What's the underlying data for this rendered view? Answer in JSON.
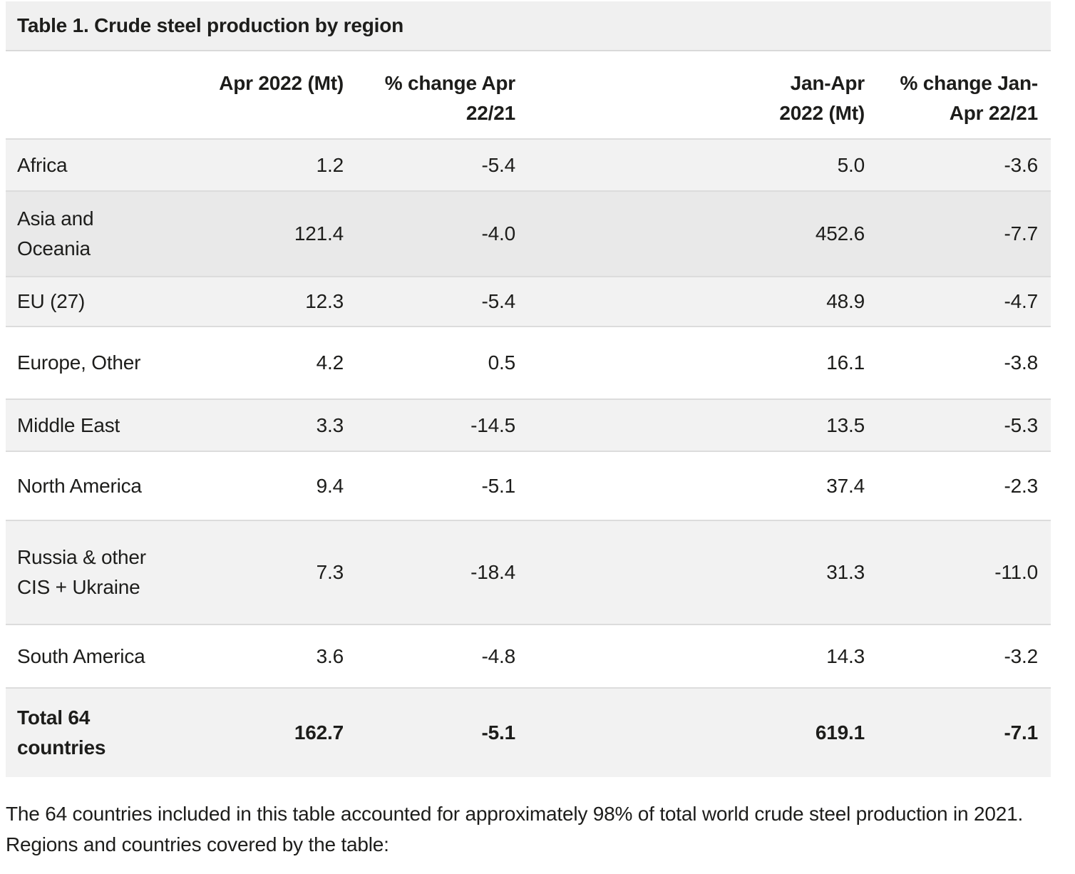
{
  "title": "Table 1. Crude steel production by region",
  "table": {
    "column_headers": {
      "region": "",
      "apr_2022": "Apr 2022 (Mt)",
      "chg_apr": "% change Apr\n22/21",
      "jan_apr_2022": "Jan-Apr\n2022 (Mt)",
      "chg_jan_apr": "% change Jan-\nApr 22/21"
    },
    "rows": [
      {
        "region": "Africa",
        "apr_2022": "1.2",
        "chg_apr": "-5.4",
        "jan_apr_2022": "5.0",
        "chg_jan_apr": "-3.6"
      },
      {
        "region": "Asia and\nOceania",
        "apr_2022": "121.4",
        "chg_apr": "-4.0",
        "jan_apr_2022": "452.6",
        "chg_jan_apr": "-7.7",
        "state": "hovered"
      },
      {
        "region": "EU (27)",
        "apr_2022": "12.3",
        "chg_apr": "-5.4",
        "jan_apr_2022": "48.9",
        "chg_jan_apr": "-4.7"
      },
      {
        "region": "Europe, Other",
        "apr_2022": "4.2",
        "chg_apr": "0.5",
        "jan_apr_2022": "16.1",
        "chg_jan_apr": "-3.8"
      },
      {
        "region": "Middle East",
        "apr_2022": "3.3",
        "chg_apr": "-14.5",
        "jan_apr_2022": "13.5",
        "chg_jan_apr": "-5.3"
      },
      {
        "region": "North America",
        "apr_2022": "9.4",
        "chg_apr": "-5.1",
        "jan_apr_2022": "37.4",
        "chg_jan_apr": "-2.3"
      },
      {
        "region": "Russia & other\nCIS + Ukraine",
        "apr_2022": "7.3",
        "chg_apr": "-18.4",
        "jan_apr_2022": "31.3",
        "chg_jan_apr": "-11.0"
      },
      {
        "region": "South America",
        "apr_2022": "3.6",
        "chg_apr": "-4.8",
        "jan_apr_2022": "14.3",
        "chg_jan_apr": "-3.2"
      },
      {
        "region": "Total 64\ncountries",
        "apr_2022": "162.7",
        "chg_apr": "-5.1",
        "jan_apr_2022": "619.1",
        "chg_jan_apr": "-7.1"
      }
    ]
  },
  "footnote": {
    "line1": "The 64 countries included in this table accounted for approximately 98% of total world crude steel production in 2021.",
    "line2": "Regions and countries covered by the table:"
  },
  "colors": {
    "text": "#1d1d1b",
    "title_bar_bg": "#f0f0f0",
    "row_stripe_bg": "#f2f2f2",
    "row_hover_bg": "#e9e9e9",
    "row_border": "#dcdcdc",
    "page_bg": "#ffffff"
  }
}
